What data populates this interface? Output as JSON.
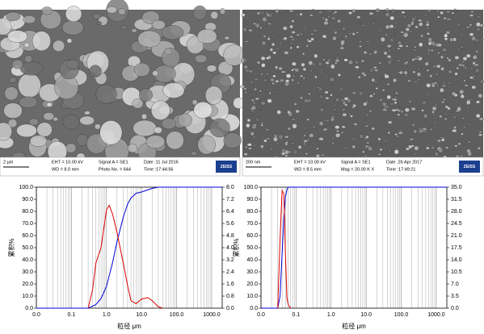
{
  "sem": [
    {
      "scale": "2 μm",
      "fields": [
        "EHT = 10.00 kV",
        "WD = 8.0 mm",
        "Signal A = SE1",
        "Photo No. = 644",
        "Date :11 Jul 2016",
        "Time :17:44:56"
      ],
      "logo": "ZEISS"
    },
    {
      "scale": "200 nm",
      "fields": [
        "EHT = 10.00 kV",
        "WD = 8.5 mm",
        "Signal A = SE1",
        "Mag = 20.00 K X",
        "Date :26 Apr 2017",
        "Time :17:49:21"
      ],
      "logo": "ZEISS"
    }
  ],
  "chart_data": [
    {
      "type": "line",
      "xlabel": "粒径 μm",
      "ylabel": "累积%",
      "xscale": "log",
      "xlim": [
        0.01,
        2000
      ],
      "xticks": [
        {
          "value": 0.01,
          "label": "0.0"
        },
        0.1,
        {
          "value": 1,
          "label": "1.0"
        },
        {
          "value": 10,
          "label": "10.0"
        },
        {
          "value": 100,
          "label": "100.0"
        },
        {
          "value": 1000,
          "label": "1000.0"
        }
      ],
      "ylim": [
        0,
        100
      ],
      "yticks": [
        {
          "value": 0,
          "label": "0.0"
        },
        {
          "value": 10,
          "label": "10.0"
        },
        {
          "value": 20,
          "label": "20.0"
        },
        {
          "value": 30,
          "label": "30.0"
        },
        {
          "value": 40,
          "label": "40.0"
        },
        {
          "value": 50,
          "label": "50.0"
        },
        {
          "value": 60,
          "label": "60.0"
        },
        {
          "value": 70,
          "label": "70.0"
        },
        {
          "value": 80,
          "label": "80.0"
        },
        {
          "value": 90,
          "label": "90.0"
        },
        {
          "value": 100,
          "label": "100.0"
        }
      ],
      "y2lim": [
        0,
        8
      ],
      "y2ticks": [
        {
          "value": 0,
          "label": "0.0"
        },
        0.8,
        1.6,
        2.4,
        3.2,
        {
          "value": 4,
          "label": "4.0"
        },
        4.8,
        5.6,
        6.4,
        7.2,
        {
          "value": 8,
          "label": "8.0"
        }
      ],
      "minor_grid": true,
      "series": [
        {
          "color": "#0000dd",
          "x": [
            0.01,
            0.3,
            0.5,
            0.7,
            1,
            1.5,
            2,
            3,
            4,
            5,
            7,
            10,
            20,
            30,
            50,
            2000
          ],
          "values": [
            0,
            0,
            3,
            8,
            18,
            38,
            55,
            75,
            86,
            91,
            95,
            96,
            99,
            100,
            100,
            100
          ]
        },
        {
          "color": "#dd0000",
          "axis": "y2",
          "x": [
            0.3,
            0.4,
            0.5,
            0.7,
            1,
            1.2,
            1.5,
            2,
            3,
            4,
            5,
            7,
            10,
            15,
            20,
            30,
            40
          ],
          "values": [
            0,
            1.2,
            3,
            4,
            6.5,
            6.8,
            6.2,
            5,
            3,
            1.5,
            0.5,
            0.3,
            0.6,
            0.7,
            0.5,
            0.1,
            0
          ]
        }
      ]
    },
    {
      "type": "line",
      "xlabel": "粒径 μm",
      "ylabel": "累积%",
      "xscale": "log",
      "xlim": [
        0.01,
        2000
      ],
      "xticks": [
        {
          "value": 0.01,
          "label": "0.0"
        },
        0.1,
        {
          "value": 1,
          "label": "1.0"
        },
        {
          "value": 10,
          "label": "10.0"
        },
        {
          "value": 100,
          "label": "100.0"
        },
        {
          "value": 1000,
          "label": "1000.0"
        }
      ],
      "ylim": [
        0,
        100
      ],
      "yticks": [
        {
          "value": 0,
          "label": "0.0"
        },
        {
          "value": 10,
          "label": "10.0"
        },
        {
          "value": 20,
          "label": "20.0"
        },
        {
          "value": 30,
          "label": "30.0"
        },
        {
          "value": 40,
          "label": "40.0"
        },
        {
          "value": 50,
          "label": "50.0"
        },
        {
          "value": 60,
          "label": "60.0"
        },
        {
          "value": 70,
          "label": "70.0"
        },
        {
          "value": 80,
          "label": "80.0"
        },
        {
          "value": 90,
          "label": "90.0"
        },
        {
          "value": 100,
          "label": "100.0"
        }
      ],
      "y2lim": [
        0,
        35
      ],
      "y2ticks": [
        {
          "value": 0,
          "label": "0.0"
        },
        3.5,
        {
          "value": 7,
          "label": "7.0"
        },
        10.5,
        {
          "value": 14,
          "label": "14.0"
        },
        17.5,
        {
          "value": 21,
          "label": "21.0"
        },
        24.5,
        {
          "value": 28,
          "label": "28.0"
        },
        31.5,
        {
          "value": 35,
          "label": "35.0"
        }
      ],
      "minor_grid": true,
      "series": [
        {
          "color": "#0000dd",
          "x": [
            0.01,
            0.03,
            0.035,
            0.04,
            0.045,
            0.05,
            0.055,
            0.06,
            2000
          ],
          "values": [
            0,
            0,
            10,
            45,
            75,
            92,
            98,
            100,
            100
          ]
        },
        {
          "color": "#dd0000",
          "axis": "y2",
          "x": [
            0.03,
            0.035,
            0.04,
            0.045,
            0.05,
            0.055,
            0.06,
            0.07
          ],
          "values": [
            0,
            20,
            34,
            33,
            15,
            3,
            1,
            0
          ]
        }
      ]
    }
  ]
}
